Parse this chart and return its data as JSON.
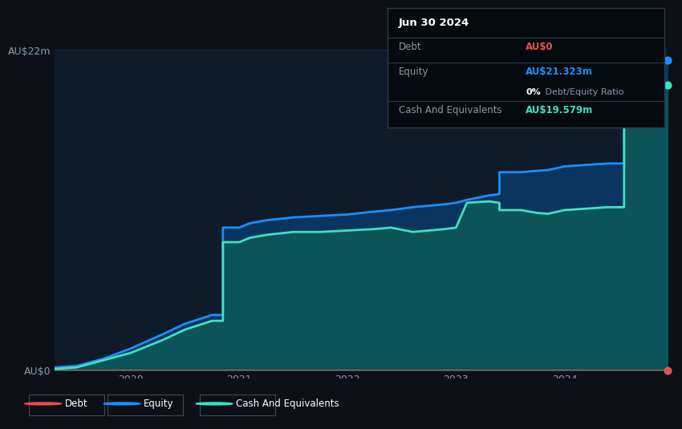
{
  "bg_color": "#0d1117",
  "plot_bg_color": "#0d1b2a",
  "grid_color": "#1e2d3d",
  "ylabel_top": "AU$22m",
  "ylabel_bottom": "AU$0",
  "ylim": [
    0,
    22
  ],
  "xlim_start": 2019.3,
  "xlim_end": 2024.95,
  "xticks": [
    2020,
    2021,
    2022,
    2023,
    2024
  ],
  "xtick_labels": [
    "2020",
    "2021",
    "2022",
    "2023",
    "2024"
  ],
  "debt_color": "#e05252",
  "equity_color": "#1a8fff",
  "cash_color": "#40e0c0",
  "equity_fill_color": "#0a3a6a",
  "cash_fill_color": "#0a5a5a",
  "debt_data_x": [
    2019.3,
    2024.95
  ],
  "debt_data_y": [
    0.0,
    0.0
  ],
  "equity_data_x": [
    2019.3,
    2019.5,
    2019.6,
    2019.75,
    2020.0,
    2020.3,
    2020.5,
    2020.75,
    2020.85,
    2020.85,
    2021.0,
    2021.1,
    2021.25,
    2021.5,
    2021.75,
    2022.0,
    2022.25,
    2022.4,
    2022.4,
    2022.6,
    2022.75,
    2022.9,
    2022.9,
    2023.0,
    2023.1,
    2023.3,
    2023.4,
    2023.4,
    2023.6,
    2023.75,
    2023.85,
    2023.85,
    2024.0,
    2024.4,
    2024.55,
    2024.55,
    2024.95
  ],
  "equity_data_y": [
    0.2,
    0.3,
    0.5,
    0.8,
    1.5,
    2.5,
    3.2,
    3.8,
    3.8,
    9.8,
    9.8,
    10.1,
    10.3,
    10.5,
    10.6,
    10.7,
    10.9,
    11.0,
    11.0,
    11.2,
    11.3,
    11.4,
    11.4,
    11.5,
    11.7,
    12.0,
    12.1,
    13.6,
    13.6,
    13.7,
    13.75,
    13.75,
    14.0,
    14.2,
    14.2,
    21.3,
    21.3
  ],
  "cash_data_x": [
    2019.3,
    2019.5,
    2019.6,
    2019.75,
    2020.0,
    2020.3,
    2020.5,
    2020.75,
    2020.85,
    2020.85,
    2021.0,
    2021.1,
    2021.25,
    2021.5,
    2021.75,
    2022.0,
    2022.25,
    2022.4,
    2022.4,
    2022.6,
    2022.75,
    2022.9,
    2022.9,
    2023.0,
    2023.1,
    2023.3,
    2023.4,
    2023.4,
    2023.6,
    2023.75,
    2023.85,
    2023.85,
    2024.0,
    2024.4,
    2024.55,
    2024.55,
    2024.95
  ],
  "cash_data_y": [
    0.1,
    0.2,
    0.4,
    0.7,
    1.2,
    2.1,
    2.8,
    3.4,
    3.4,
    8.8,
    8.8,
    9.1,
    9.3,
    9.5,
    9.5,
    9.6,
    9.7,
    9.8,
    9.8,
    9.5,
    9.6,
    9.7,
    9.7,
    9.8,
    11.5,
    11.6,
    11.5,
    11.0,
    11.0,
    10.8,
    10.75,
    10.75,
    11.0,
    11.2,
    11.2,
    19.58,
    19.58
  ],
  "info_box": {
    "date": "Jun 30 2024",
    "debt_label": "Debt",
    "debt_value": "AU$0",
    "equity_label": "Equity",
    "equity_value": "AU$21.323m",
    "ratio_value": "0%",
    "ratio_label": " Debt/Equity Ratio",
    "cash_label": "Cash And Equivalents",
    "cash_value": "AU$19.579m",
    "bg_color": "#050a0f",
    "border_color": "#2a3a4a",
    "text_color": "#8899aa",
    "title_color": "#ffffff",
    "debt_val_color": "#e05252",
    "equity_val_color": "#1a8fff",
    "cash_val_color": "#40e0c0",
    "ratio_bold_color": "#ffffff"
  },
  "legend": {
    "debt_label": "Debt",
    "equity_label": "Equity",
    "cash_label": "Cash And Equivalents"
  }
}
